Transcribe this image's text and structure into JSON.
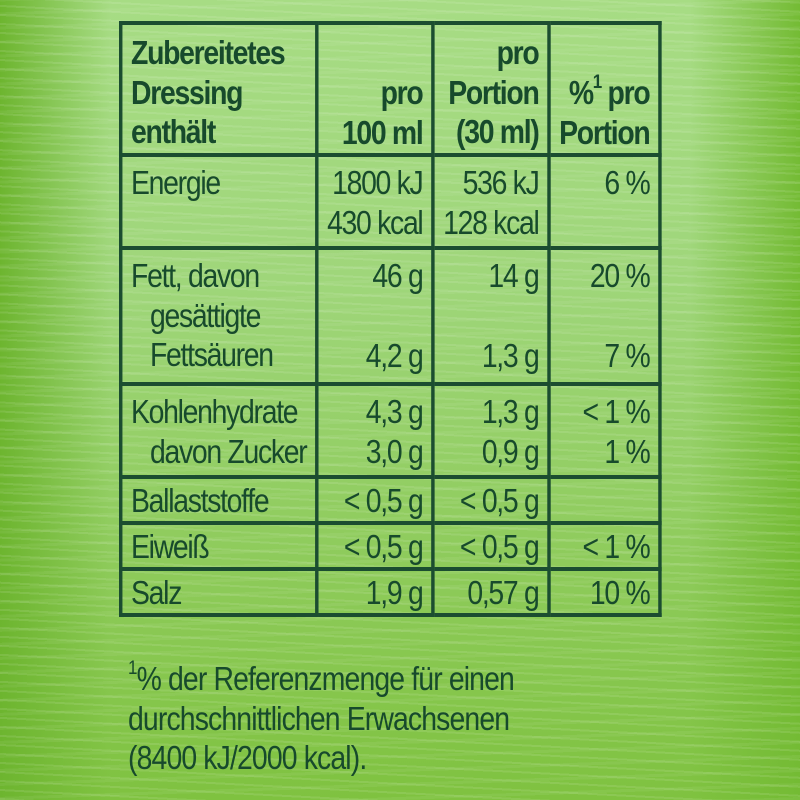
{
  "table": {
    "header": {
      "col1": [
        "Zubereitetes",
        "Dressing",
        "enthält"
      ],
      "col2": [
        "pro",
        "100 ml"
      ],
      "col3": [
        "pro",
        "Portion",
        "(30 ml)"
      ],
      "col4_pct": "%",
      "col4_sup": "1",
      "col4_pro": "pro",
      "col4_line2": "Portion"
    },
    "energie": {
      "label": "Energie",
      "kj100": "1800 kJ",
      "kcal100": "430 kcal",
      "kjport": "536 kJ",
      "kcalport": "128 kcal",
      "pct": "6 %"
    },
    "fett": {
      "label": "Fett, davon",
      "v100": "46 g",
      "vport": "14 g",
      "pct": "20 %",
      "sub_label_1": "gesättigte",
      "sub_label_2": "Fettsäuren",
      "sub_v100": "4,2 g",
      "sub_vport": "1,3 g",
      "sub_pct": "7 %"
    },
    "kohlenhydrate": {
      "label": "Kohlenhydrate",
      "v100": "4,3 g",
      "vport": "1,3 g",
      "pct": "< 1 %",
      "sub_label": "davon Zucker",
      "sub_v100": "3,0 g",
      "sub_vport": "0,9 g",
      "sub_pct": "1 %"
    },
    "ballaststoffe": {
      "label": "Ballaststoffe",
      "v100": "< 0,5 g",
      "vport": "< 0,5 g",
      "pct": ""
    },
    "eiweiss": {
      "label": "Eiweiß",
      "v100": "< 0,5 g",
      "vport": "< 0,5 g",
      "pct": "< 1 %"
    },
    "salz": {
      "label": "Salz",
      "v100": "1,9 g",
      "vport": "0,57 g",
      "pct": "10 %"
    }
  },
  "footnote": {
    "sup": "1",
    "line1": "% der Referenzmenge für einen",
    "line2": "durchschnittlichen Erwachsenen",
    "line3": "(8400 kJ/2000 kcal)."
  }
}
